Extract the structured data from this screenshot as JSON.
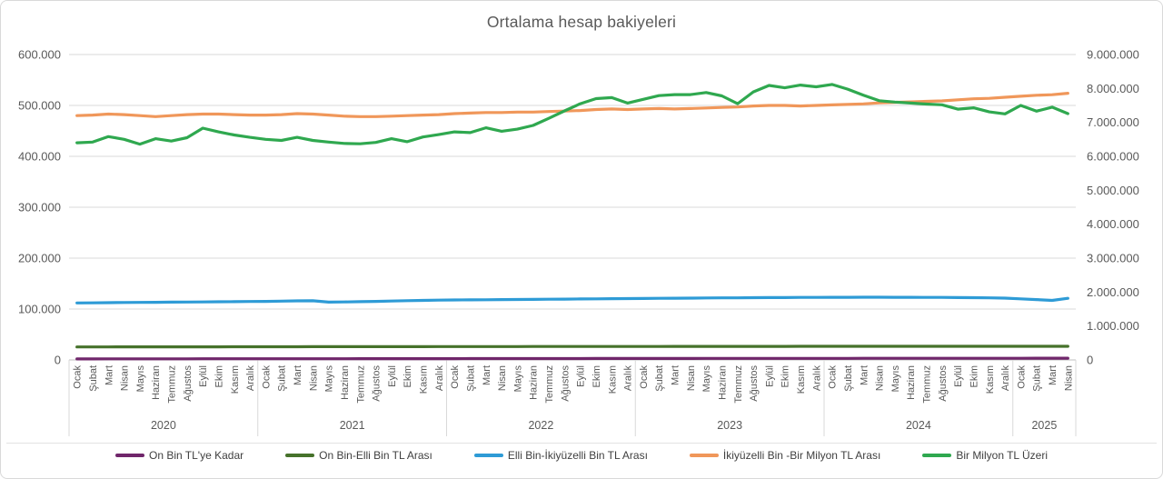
{
  "chart_data": {
    "type": "line",
    "title": "Ortalama hesap bakiyeleri",
    "grid": true,
    "legend_position": "bottom",
    "x": {
      "month_names": [
        "Ocak",
        "Şubat",
        "Mart",
        "Nisan",
        "Mayıs",
        "Haziran",
        "Temmuz",
        "Ağustos",
        "Eylül",
        "Ekim",
        "Kasım",
        "Aralık"
      ],
      "years": [
        {
          "label": "2020",
          "months": 12
        },
        {
          "label": "2021",
          "months": 12
        },
        {
          "label": "2022",
          "months": 12
        },
        {
          "label": "2023",
          "months": 12
        },
        {
          "label": "2024",
          "months": 12
        },
        {
          "label": "2025",
          "months": 4
        }
      ]
    },
    "axes": {
      "left": {
        "min": 0,
        "max": 600000,
        "step": 100000,
        "tick_labels": [
          "0",
          "100.000",
          "200.000",
          "300.000",
          "400.000",
          "500.000",
          "600.000"
        ]
      },
      "right": {
        "min": 0,
        "max": 9000000,
        "step": 1000000,
        "tick_labels": [
          "0",
          "1.000.000",
          "2.000.000",
          "3.000.000",
          "4.000.000",
          "5.000.000",
          "6.000.000",
          "7.000.000",
          "8.000.000",
          "9.000.000"
        ]
      }
    },
    "colors": {
      "grid": "#d9d9d9",
      "zero_axis": "#bfbfbf",
      "text": "#595959"
    },
    "series": [
      {
        "name": "On Bin TL'ye Kadar",
        "color": "#70266B",
        "axis": "left",
        "values": [
          2000,
          2050,
          2100,
          2100,
          2150,
          2150,
          2200,
          2200,
          2250,
          2250,
          2300,
          2300,
          2300,
          2350,
          2350,
          2400,
          2400,
          2400,
          2450,
          2450,
          2500,
          2500,
          2500,
          2550,
          2550,
          2600,
          2600,
          2650,
          2650,
          2700,
          2700,
          2750,
          2750,
          2800,
          2800,
          2850,
          2850,
          2850,
          2900,
          2900,
          2950,
          2950,
          3000,
          3000,
          3000,
          3050,
          3050,
          3100,
          3100,
          3100,
          3150,
          3150,
          3150,
          3200,
          3200,
          3200,
          3250,
          3250,
          3300,
          3300,
          3300,
          3350,
          3350,
          3400
        ]
      },
      {
        "name": "On Bin-Elli Bin TL Arası",
        "color": "#46722B",
        "axis": "left",
        "values": [
          25500,
          25550,
          25600,
          25650,
          25650,
          25700,
          25700,
          25750,
          25800,
          25800,
          25850,
          25850,
          25900,
          25900,
          25950,
          26000,
          26000,
          26050,
          26050,
          26100,
          26100,
          26150,
          26150,
          26200,
          26200,
          26250,
          26250,
          26300,
          26300,
          26350,
          26350,
          26400,
          26400,
          26450,
          26450,
          26500,
          26500,
          26500,
          26550,
          26550,
          26600,
          26600,
          26600,
          26650,
          26650,
          26650,
          26700,
          26700,
          26700,
          26700,
          26720,
          26720,
          26750,
          26750,
          26750,
          26770,
          26770,
          26780,
          26780,
          26790,
          26790,
          26800,
          26800,
          26800
        ]
      },
      {
        "name": "Elli Bin-İkiyüzelli Bin TL Arası",
        "color": "#2E9BD6",
        "axis": "left",
        "values": [
          112000,
          112200,
          112500,
          112800,
          113000,
          113200,
          113500,
          113800,
          114000,
          114300,
          114500,
          114800,
          115000,
          115500,
          116000,
          116200,
          113500,
          114000,
          114500,
          115000,
          115800,
          116500,
          117000,
          117500,
          117800,
          118000,
          118300,
          118500,
          118800,
          119000,
          119300,
          119500,
          119800,
          120000,
          120300,
          120500,
          120800,
          121000,
          121300,
          121500,
          121800,
          122000,
          122000,
          122300,
          122500,
          122500,
          122800,
          122800,
          123000,
          123000,
          123200,
          123200,
          123000,
          123000,
          122800,
          122800,
          122500,
          122300,
          122000,
          121500,
          120000,
          118500,
          117000,
          121000
        ]
      },
      {
        "name": "İkiyüzelli Bin -Bir Milyon  TL Arası",
        "color": "#F0975A",
        "axis": "left",
        "values": [
          480000,
          481000,
          483000,
          482000,
          480000,
          478000,
          480000,
          482000,
          483000,
          483000,
          482000,
          481000,
          481000,
          482000,
          484000,
          483000,
          481000,
          479000,
          478000,
          478000,
          479000,
          480000,
          481000,
          482000,
          484000,
          485000,
          486000,
          486000,
          487000,
          487000,
          488000,
          489000,
          490000,
          492000,
          493000,
          492000,
          493000,
          494000,
          493000,
          494000,
          495000,
          496000,
          497000,
          499000,
          500000,
          500000,
          499000,
          500000,
          501000,
          502000,
          503000,
          505000,
          506000,
          507000,
          508000,
          509000,
          511000,
          513000,
          514000,
          516000,
          518000,
          520000,
          521000,
          524000
        ]
      },
      {
        "name": "Bir Milyon TL Üzeri",
        "color": "#2FA84F",
        "axis": "right",
        "values": [
          6400000,
          6420000,
          6580000,
          6500000,
          6360000,
          6520000,
          6450000,
          6550000,
          6830000,
          6720000,
          6630000,
          6560000,
          6500000,
          6470000,
          6560000,
          6470000,
          6420000,
          6380000,
          6370000,
          6410000,
          6520000,
          6430000,
          6570000,
          6640000,
          6720000,
          6700000,
          6840000,
          6740000,
          6800000,
          6910000,
          7120000,
          7340000,
          7550000,
          7700000,
          7730000,
          7570000,
          7680000,
          7790000,
          7820000,
          7820000,
          7880000,
          7780000,
          7550000,
          7900000,
          8090000,
          8020000,
          8100000,
          8050000,
          8120000,
          7980000,
          7800000,
          7640000,
          7600000,
          7570000,
          7540000,
          7520000,
          7390000,
          7430000,
          7310000,
          7250000,
          7500000,
          7330000,
          7450000,
          7260000
        ]
      }
    ]
  }
}
